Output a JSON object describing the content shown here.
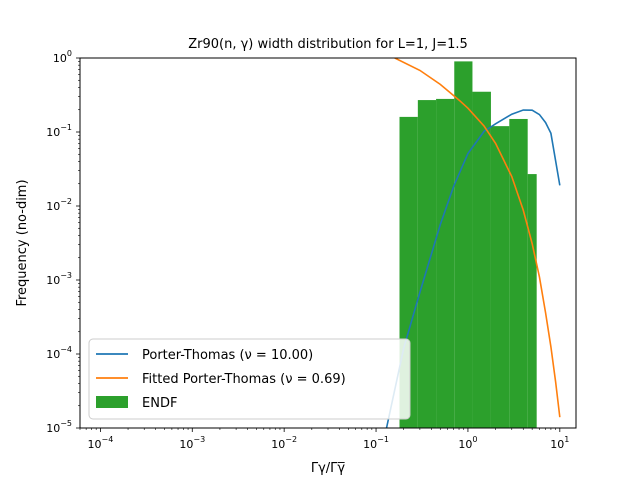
{
  "chart_data": {
    "type": "bar",
    "title": "Zr90(n, γ) width distribution for L=1, J=1.5",
    "xlabel": "Γγ/Γγ̅",
    "ylabel": "Frequency (no-dim)",
    "xscale": "log",
    "yscale": "log",
    "xlim": [
      6e-05,
      15
    ],
    "ylim": [
      1e-05,
      1
    ],
    "grid": false,
    "legend_position": "lower-left",
    "x_ticks": [
      {
        "value": 0.0001,
        "mant": "10",
        "exp": "−4"
      },
      {
        "value": 0.001,
        "mant": "10",
        "exp": "−3"
      },
      {
        "value": 0.01,
        "mant": "10",
        "exp": "−2"
      },
      {
        "value": 0.1,
        "mant": "10",
        "exp": "−1"
      },
      {
        "value": 1,
        "mant": "10",
        "exp": "0"
      },
      {
        "value": 10,
        "mant": "10",
        "exp": "1"
      }
    ],
    "y_ticks": [
      {
        "value": 1e-05,
        "mant": "10",
        "exp": "−5"
      },
      {
        "value": 0.0001,
        "mant": "10",
        "exp": "−4"
      },
      {
        "value": 0.001,
        "mant": "10",
        "exp": "−3"
      },
      {
        "value": 0.01,
        "mant": "10",
        "exp": "−2"
      },
      {
        "value": 0.1,
        "mant": "10",
        "exp": "−1"
      },
      {
        "value": 1,
        "mant": "10",
        "exp": "0"
      }
    ],
    "histogram": {
      "name": "ENDF",
      "color": "#2ca02c",
      "bin_edges": [
        0.18,
        0.285,
        0.45,
        0.71,
        1.12,
        1.78,
        2.82,
        4.47,
        5.6
      ],
      "values": [
        0.16,
        0.27,
        0.28,
        0.9,
        0.35,
        0.12,
        0.15,
        0.027
      ]
    },
    "series": [
      {
        "name": "Porter-Thomas (ν = 10.00)",
        "color": "#1f77b4",
        "x": [
          0.13,
          0.2,
          0.3,
          0.5,
          0.7,
          1.0,
          1.5,
          2.0,
          3.0,
          4.0,
          5.0,
          6.0,
          7.0,
          8.0,
          10.0
        ],
        "y": [
          1e-05,
          0.00012,
          0.00068,
          0.0056,
          0.0185,
          0.0512,
          0.102,
          0.129,
          0.174,
          0.198,
          0.197,
          0.172,
          0.134,
          0.096,
          0.019
        ]
      },
      {
        "name": "Fitted Porter-Thomas (ν = 0.69)",
        "color": "#ff7f0e",
        "x": [
          0.16,
          0.3,
          0.5,
          0.8,
          1.0,
          1.5,
          2.0,
          3.0,
          4.0,
          5.0,
          6.0,
          7.0,
          8.0,
          9.0,
          10.0
        ],
        "y": [
          1.0,
          0.68,
          0.44,
          0.27,
          0.21,
          0.12,
          0.07,
          0.025,
          0.0088,
          0.0031,
          0.0011,
          0.00036,
          0.000125,
          4.2e-05,
          1.4e-05
        ]
      }
    ],
    "legend": {
      "entries": [
        {
          "label": "Porter-Thomas (ν = 10.00)",
          "kind": "line",
          "color": "#1f77b4"
        },
        {
          "label": "Fitted Porter-Thomas (ν = 0.69)",
          "kind": "line",
          "color": "#ff7f0e"
        },
        {
          "label": "ENDF",
          "kind": "patch",
          "color": "#2ca02c"
        }
      ]
    }
  }
}
